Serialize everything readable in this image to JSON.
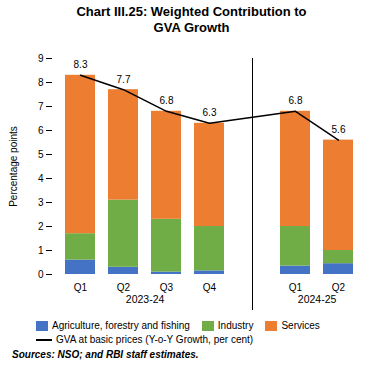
{
  "chart_data": {
    "type": "bar",
    "title": "Chart III.25: Weighted Contribution to\nGVA Growth",
    "ylabel": "Percentage points",
    "categories": [
      "Q1",
      "Q2",
      "Q3",
      "Q4",
      "Q1",
      "Q2"
    ],
    "groups": [
      "2023-24",
      "2023-24",
      "2023-24",
      "2023-24",
      "2024-25",
      "2024-25"
    ],
    "stacked": true,
    "series": [
      {
        "name": "Agriculture, forestry and fishing",
        "type": "bar",
        "color": "#4472C4",
        "values": [
          0.6,
          0.3,
          0.1,
          0.15,
          0.35,
          0.45
        ]
      },
      {
        "name": "Industry",
        "type": "bar",
        "color": "#70AD47",
        "values": [
          1.1,
          2.8,
          2.2,
          1.85,
          1.65,
          0.55
        ]
      },
      {
        "name": "Services",
        "type": "bar",
        "color": "#ED7D31",
        "values": [
          6.6,
          4.6,
          4.5,
          4.3,
          4.8,
          4.6
        ]
      },
      {
        "name": "GVA at basic prices (Y-o-Y Growth, per cent)",
        "type": "line",
        "color": "#000000",
        "data_labels": true,
        "values": [
          8.3,
          7.7,
          6.8,
          6.3,
          6.8,
          5.6
        ]
      }
    ],
    "ylim": [
      0,
      9
    ],
    "yticks": [
      0,
      1,
      2,
      3,
      4,
      5,
      6,
      7,
      8,
      9
    ],
    "grid": false,
    "legend": "bottom",
    "source": "Sources: NSO; and RBI staff estimates."
  }
}
